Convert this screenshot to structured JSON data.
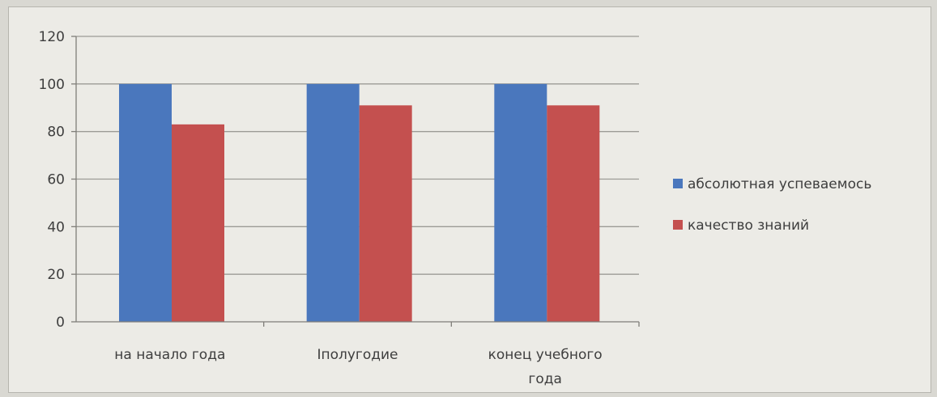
{
  "chart_data": {
    "type": "bar",
    "categories": [
      [
        "на начало года"
      ],
      [
        "Iполугодие"
      ],
      [
        "конец учебного",
        "года"
      ]
    ],
    "series": [
      {
        "name": "абсолютная успеваемось",
        "values": [
          100,
          100,
          100
        ],
        "color": "#4a77bd"
      },
      {
        "name": "качество знаний",
        "values": [
          83,
          91,
          91
        ],
        "color": "#c4504f"
      }
    ],
    "title": "",
    "xlabel": "",
    "ylabel": "",
    "ylim": [
      0,
      120
    ],
    "yticks": [
      0,
      20,
      40,
      60,
      80,
      100,
      120
    ],
    "grid": true,
    "legend_position": "right"
  },
  "colors": {
    "background": "#ecebe6",
    "gridline": "#9c9b96",
    "axis": "#7f7e79"
  }
}
